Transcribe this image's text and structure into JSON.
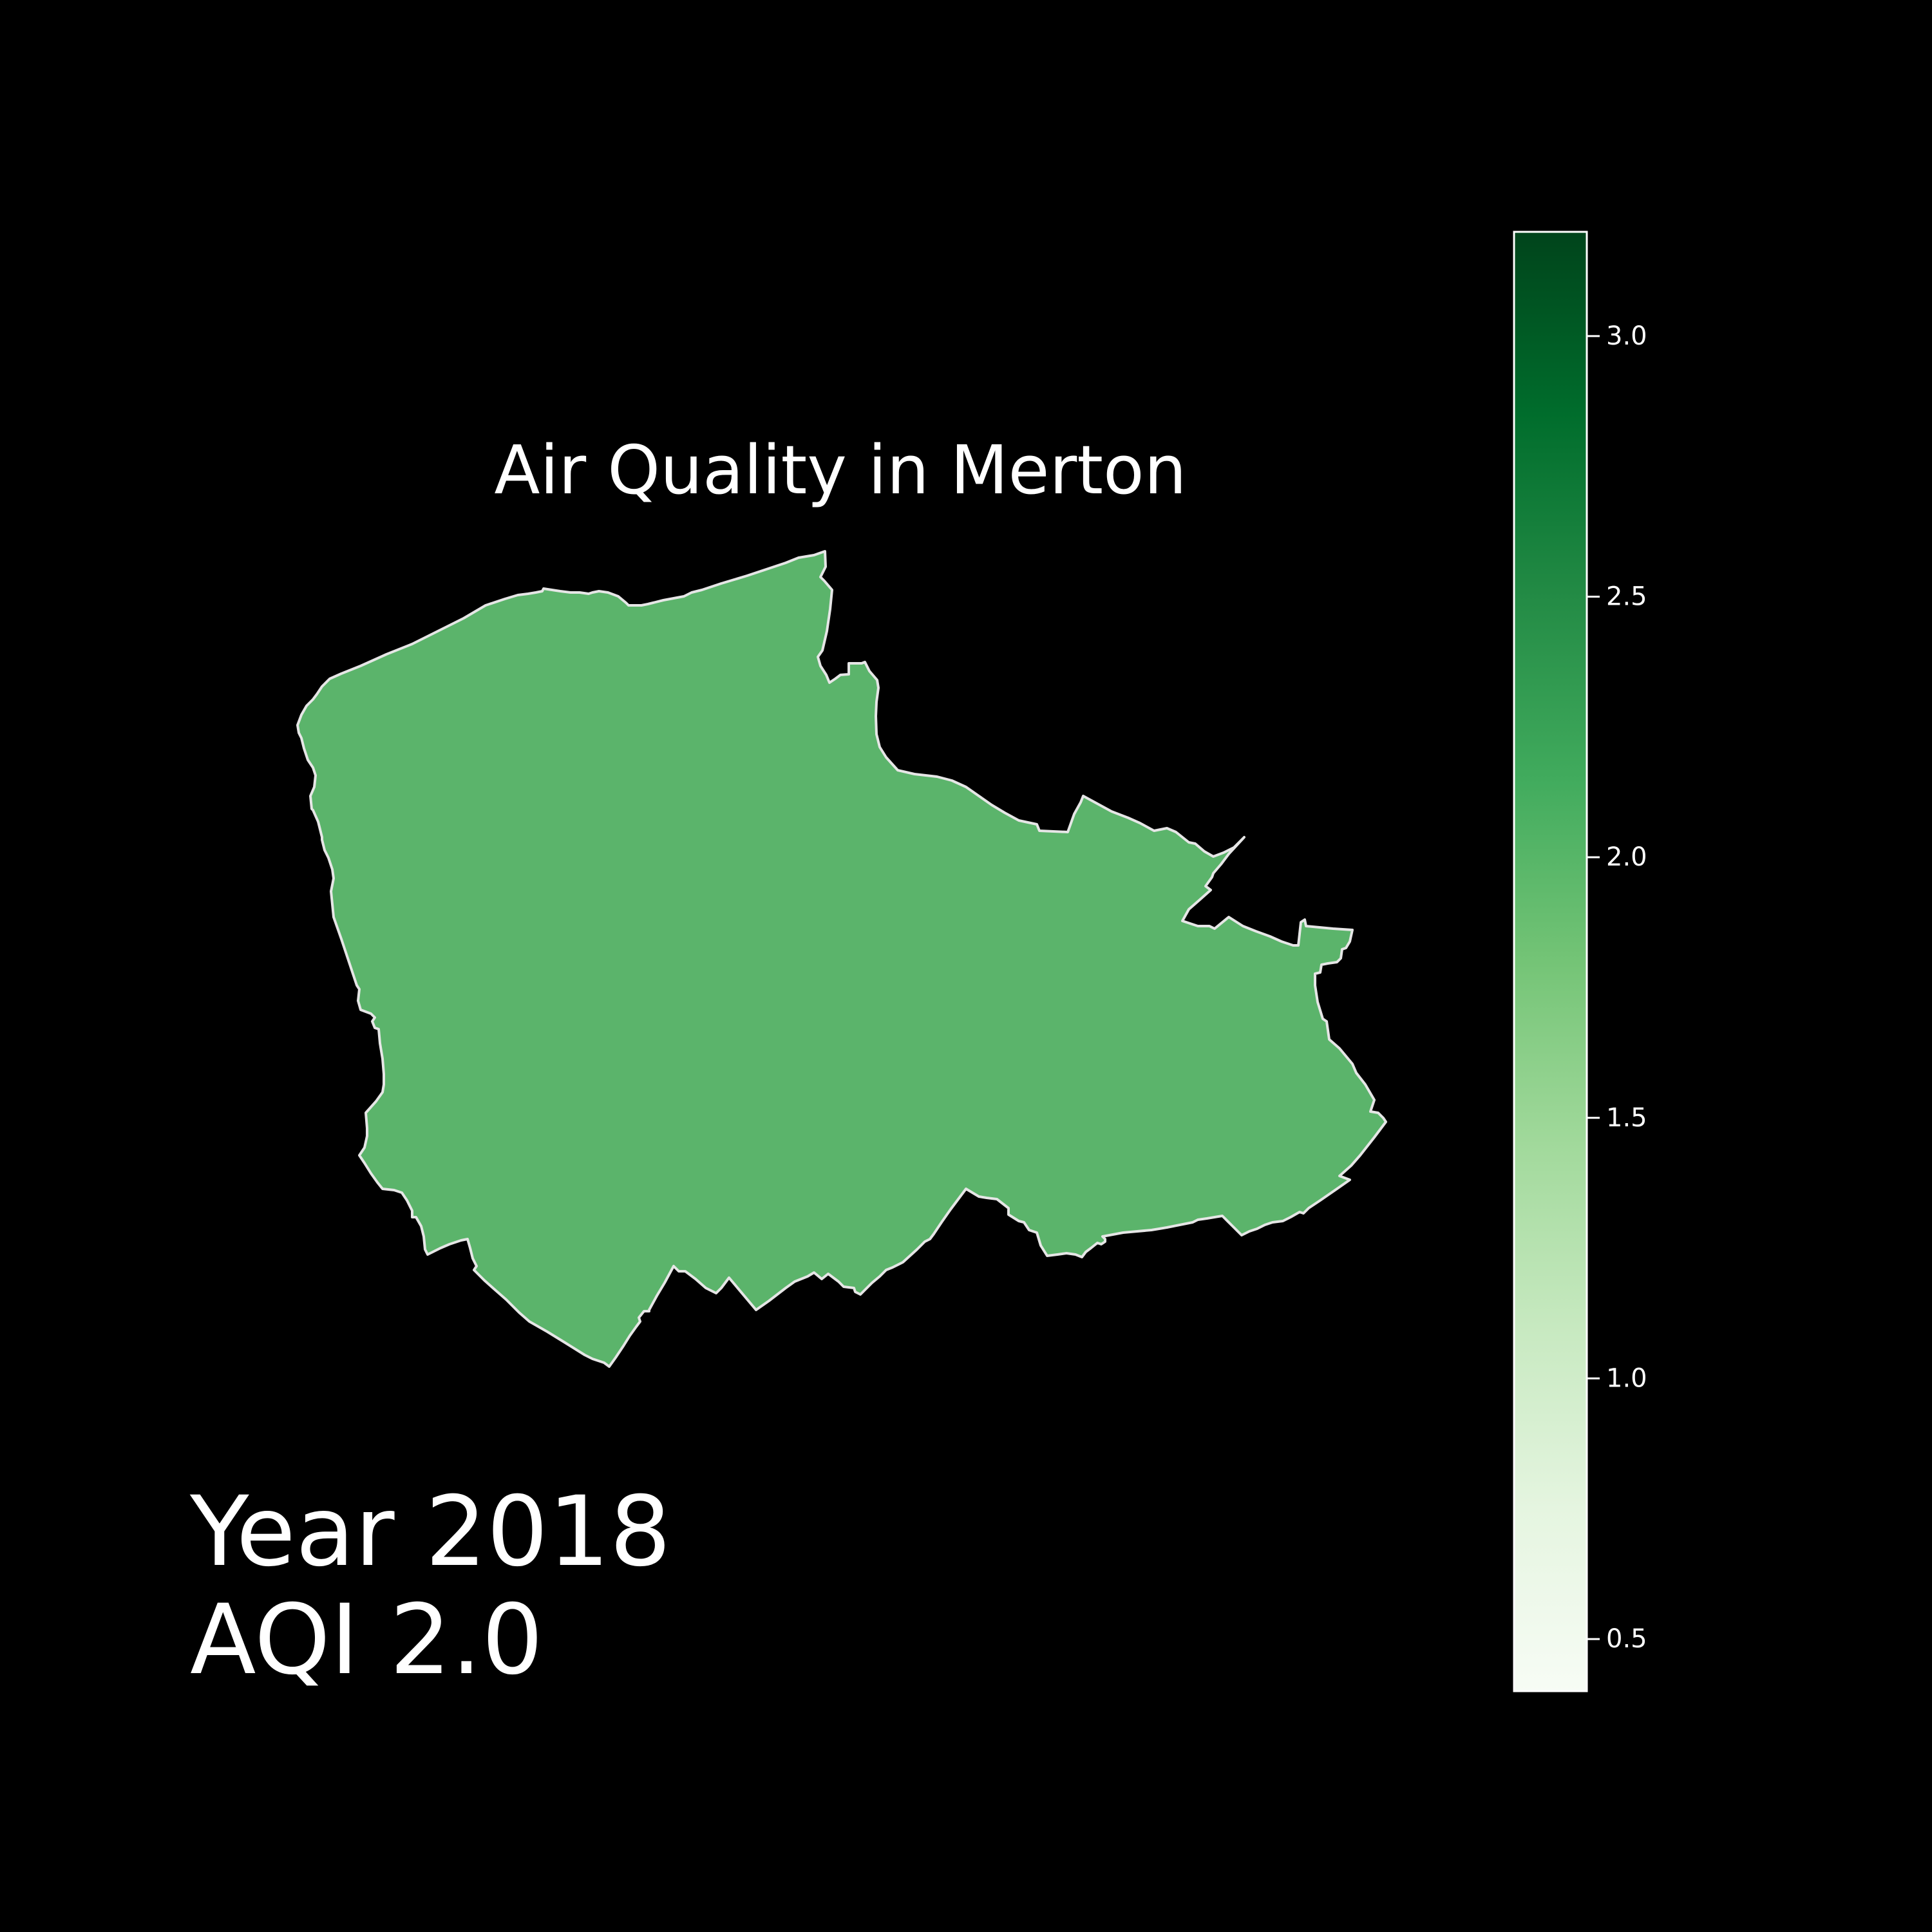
{
  "map": {
    "title": "Air Quality in Merton",
    "region_name": "Merton",
    "region_value": 2.0,
    "region_color": "#5bb46b",
    "border_color": "#e6e6e6",
    "background_color": "#000000"
  },
  "annotation": {
    "year_line": "Year 2018",
    "aqi_line": "AQI 2.0"
  },
  "colorbar": {
    "colormap": "Greens",
    "min": 0.4,
    "max": 3.2,
    "ticks": [
      0.5,
      1.0,
      1.5,
      2.0,
      2.5,
      3.0
    ],
    "tick_labels": [
      "0.5",
      "1.0",
      "1.5",
      "2.0",
      "2.5",
      "3.0"
    ],
    "stops": [
      "#f7fcf5",
      "#e5f5e0",
      "#c7e9c0",
      "#a1d99b",
      "#74c476",
      "#41ab5d",
      "#238b45",
      "#006d2c",
      "#00441b"
    ]
  }
}
